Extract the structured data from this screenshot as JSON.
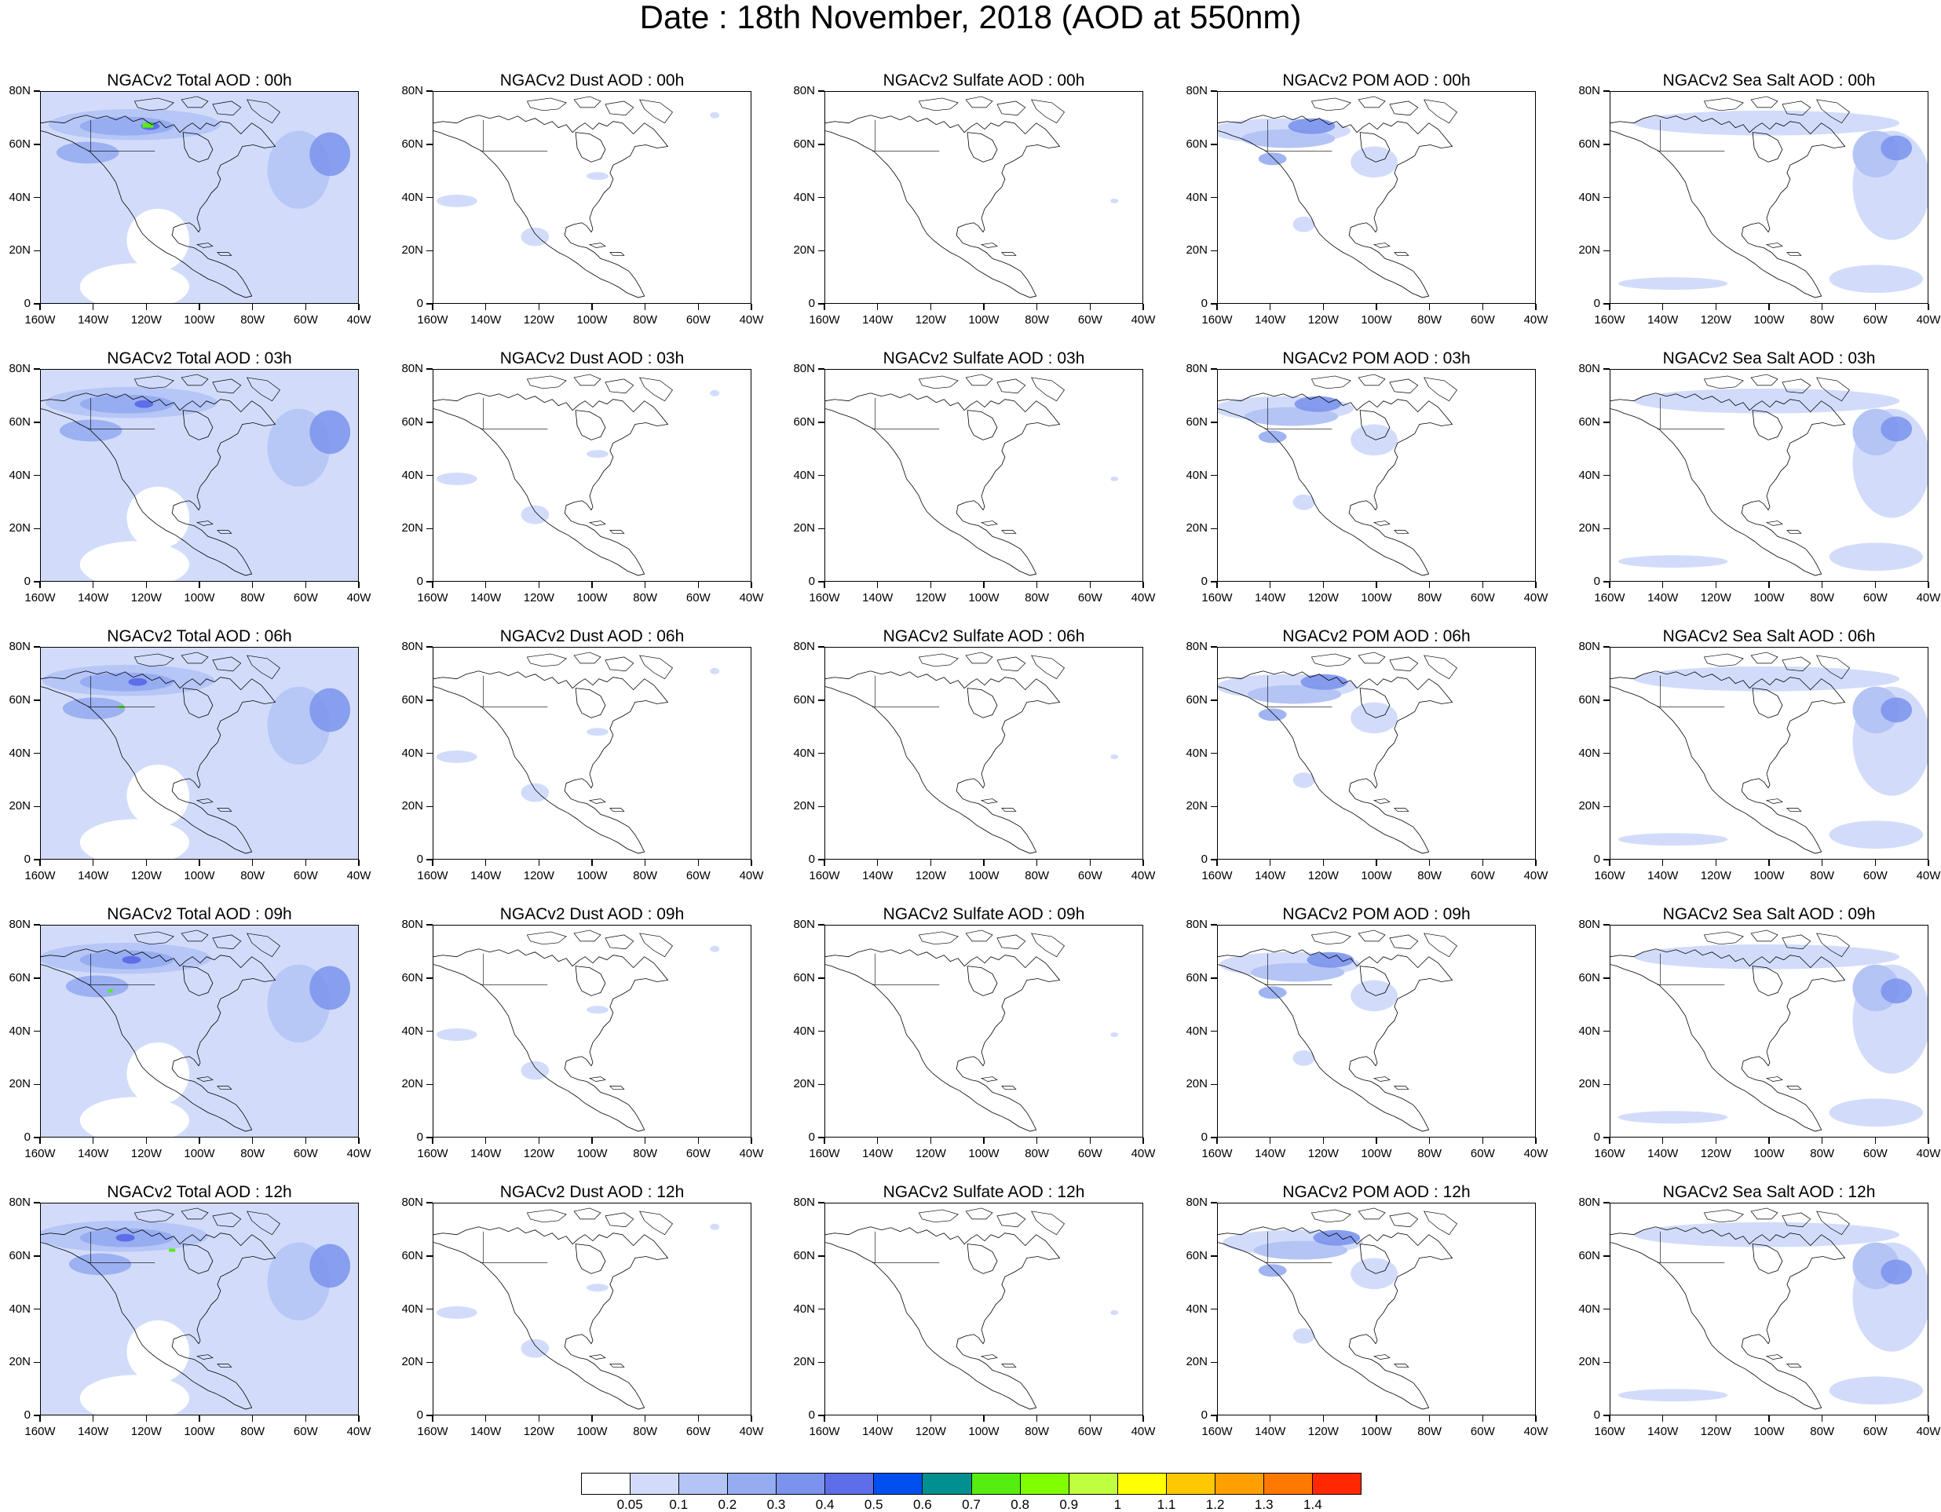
{
  "title": "Date : 18th November, 2018 (AOD at 550nm)",
  "axes": {
    "x_ticks": [
      "160W",
      "140W",
      "120W",
      "100W",
      "80W",
      "60W",
      "40W"
    ],
    "y_ticks": [
      "80N",
      "60N",
      "40N",
      "20N",
      "0"
    ]
  },
  "panels": [
    {
      "title": "NGACv2 Total AOD : 00h",
      "species": "total",
      "hour": "00h"
    },
    {
      "title": "NGACv2 Dust AOD : 00h",
      "species": "dust",
      "hour": "00h"
    },
    {
      "title": "NGACv2 Sulfate AOD : 00h",
      "species": "sulfate",
      "hour": "00h"
    },
    {
      "title": "NGACv2 POM AOD : 00h",
      "species": "pom",
      "hour": "00h"
    },
    {
      "title": "NGACv2 Sea Salt AOD : 00h",
      "species": "seasalt",
      "hour": "00h"
    },
    {
      "title": "NGACv2 Total AOD : 03h",
      "species": "total",
      "hour": "03h"
    },
    {
      "title": "NGACv2 Dust AOD : 03h",
      "species": "dust",
      "hour": "03h"
    },
    {
      "title": "NGACv2 Sulfate AOD : 03h",
      "species": "sulfate",
      "hour": "03h"
    },
    {
      "title": "NGACv2 POM AOD : 03h",
      "species": "pom",
      "hour": "03h"
    },
    {
      "title": "NGACv2 Sea Salt AOD : 03h",
      "species": "seasalt",
      "hour": "03h"
    },
    {
      "title": "NGACv2 Total AOD : 06h",
      "species": "total",
      "hour": "06h"
    },
    {
      "title": "NGACv2 Dust AOD : 06h",
      "species": "dust",
      "hour": "06h"
    },
    {
      "title": "NGACv2 Sulfate AOD : 06h",
      "species": "sulfate",
      "hour": "06h"
    },
    {
      "title": "NGACv2 POM AOD : 06h",
      "species": "pom",
      "hour": "06h"
    },
    {
      "title": "NGACv2 Sea Salt AOD : 06h",
      "species": "seasalt",
      "hour": "06h"
    },
    {
      "title": "NGACv2 Total AOD : 09h",
      "species": "total",
      "hour": "09h"
    },
    {
      "title": "NGACv2 Dust AOD : 09h",
      "species": "dust",
      "hour": "09h"
    },
    {
      "title": "NGACv2 Sulfate AOD : 09h",
      "species": "sulfate",
      "hour": "09h"
    },
    {
      "title": "NGACv2 POM AOD : 09h",
      "species": "pom",
      "hour": "09h"
    },
    {
      "title": "NGACv2 Sea Salt  AOD : 09h",
      "species": "seasalt",
      "hour": "09h"
    },
    {
      "title": "NGACv2 Total AOD  : 12h",
      "species": "total",
      "hour": "12h"
    },
    {
      "title": "NGACv2 Dust AOD : 12h",
      "species": "dust",
      "hour": "12h"
    },
    {
      "title": "NGACv2 Sulfate AOD : 12h",
      "species": "sulfate",
      "hour": "12h"
    },
    {
      "title": "NGACv2 POM  AOD : 12h",
      "species": "pom",
      "hour": "12h"
    },
    {
      "title": "NGACv2 Sea Salt  AOD : 12h",
      "species": "seasalt",
      "hour": "12h"
    }
  ],
  "colorbar": {
    "labels": [
      "0.05",
      "0.1",
      "0.2",
      "0.3",
      "0.4",
      "0.5",
      "0.6",
      "0.7",
      "0.8",
      "0.9",
      "1",
      "1.1",
      "1.2",
      "1.3",
      "1.4"
    ],
    "colors": [
      "#ffffff",
      "#d2dcfa",
      "#b4c4f5",
      "#96acf0",
      "#7b93ec",
      "#5e6de8",
      "#0050f0",
      "#009090",
      "#55ee10",
      "#80ff00",
      "#c0ff40",
      "#ffff00",
      "#ffc800",
      "#ffa000",
      "#ff7800",
      "#ff2800"
    ]
  }
}
